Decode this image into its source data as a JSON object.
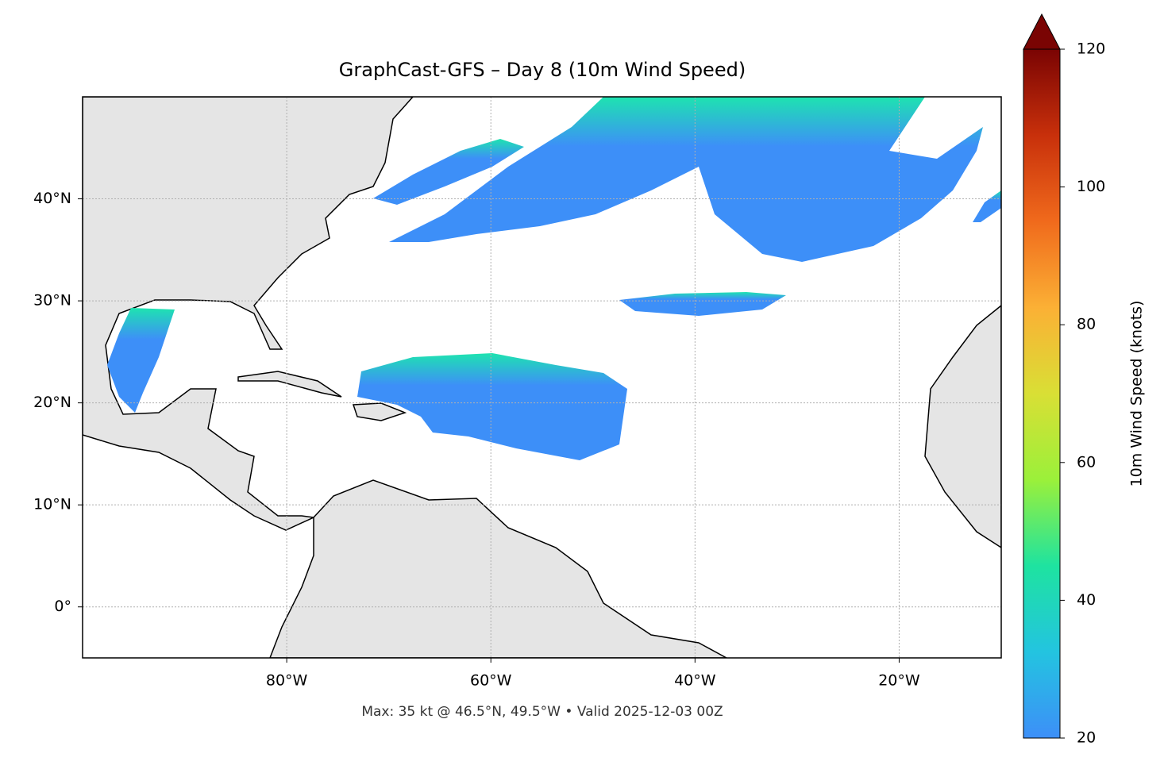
{
  "chart_data": {
    "type": "map",
    "title": "GraphCast-GFS – Day 8 (10m Wind Speed)",
    "footnote": "Max: 35 kt @ 46.5°N, 49.5°W • Valid 2025-12-03 00Z",
    "xlim": [
      -100,
      -10
    ],
    "ylim": [
      -5,
      50
    ],
    "xticks": [
      {
        "value": -80,
        "label": "80°W"
      },
      {
        "value": -60,
        "label": "60°W"
      },
      {
        "value": -40,
        "label": "40°W"
      },
      {
        "value": -20,
        "label": "20°W"
      }
    ],
    "yticks": [
      {
        "value": 0,
        "label": "0°"
      },
      {
        "value": 10,
        "label": "10°N"
      },
      {
        "value": 20,
        "label": "20°N"
      },
      {
        "value": 30,
        "label": "30°N"
      },
      {
        "value": 40,
        "label": "40°N"
      }
    ],
    "grid": true,
    "colorbar": {
      "label": "10m Wind Speed (knots)",
      "lim": [
        20,
        120
      ],
      "ticks": [
        20,
        40,
        60,
        80,
        100,
        120
      ],
      "colors": [
        "#3d8ff8",
        "#23c4e0",
        "#1ee3a0",
        "#9bf03a",
        "#d9df35",
        "#fbb035",
        "#f06a1c",
        "#c8300b",
        "#7a0403"
      ]
    }
  }
}
